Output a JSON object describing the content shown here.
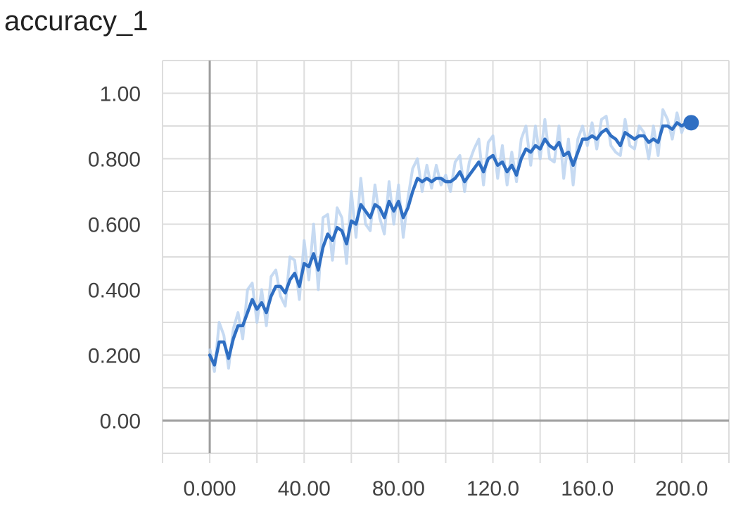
{
  "title": "accuracy_1",
  "chart_data": {
    "type": "line",
    "title": "accuracy_1",
    "xlabel": "",
    "ylabel": "",
    "xlim": [
      -20,
      220
    ],
    "ylim": [
      -0.1,
      1.1
    ],
    "x_ticks": [
      0,
      40,
      80,
      120,
      160,
      200
    ],
    "x_tick_labels": [
      "0.000",
      "40.00",
      "80.00",
      "120.0",
      "160.0",
      "200.0"
    ],
    "y_ticks": [
      0,
      0.2,
      0.4,
      0.6,
      0.8,
      1.0
    ],
    "y_tick_labels": [
      "0.00",
      "0.200",
      "0.400",
      "0.600",
      "0.800",
      "1.00"
    ],
    "grid": true,
    "colors": {
      "smoothed": "#2f6fc3",
      "raw": "#bcd4f0",
      "grid": "#dddddd",
      "axis": "#9e9e9e"
    },
    "series": [
      {
        "role": "smoothed",
        "x": [
          0,
          2,
          4,
          6,
          8,
          10,
          12,
          14,
          16,
          18,
          20,
          22,
          24,
          26,
          28,
          30,
          32,
          34,
          36,
          38,
          40,
          42,
          44,
          46,
          48,
          50,
          52,
          54,
          56,
          58,
          60,
          62,
          64,
          66,
          68,
          70,
          72,
          74,
          76,
          78,
          80,
          82,
          84,
          86,
          88,
          90,
          92,
          94,
          96,
          98,
          100,
          102,
          104,
          106,
          108,
          110,
          112,
          114,
          116,
          118,
          120,
          122,
          124,
          126,
          128,
          130,
          132,
          134,
          136,
          138,
          140,
          142,
          144,
          146,
          148,
          150,
          152,
          154,
          156,
          158,
          160,
          162,
          164,
          166,
          168,
          170,
          172,
          174,
          176,
          178,
          180,
          182,
          184,
          186,
          188,
          190,
          192,
          194,
          196,
          198,
          200,
          202,
          204
        ],
        "y": [
          0.2,
          0.17,
          0.24,
          0.24,
          0.19,
          0.25,
          0.29,
          0.29,
          0.33,
          0.37,
          0.34,
          0.36,
          0.33,
          0.38,
          0.41,
          0.41,
          0.39,
          0.43,
          0.45,
          0.41,
          0.48,
          0.47,
          0.51,
          0.46,
          0.53,
          0.57,
          0.55,
          0.59,
          0.58,
          0.54,
          0.61,
          0.6,
          0.66,
          0.64,
          0.62,
          0.66,
          0.65,
          0.62,
          0.67,
          0.64,
          0.67,
          0.62,
          0.65,
          0.7,
          0.74,
          0.73,
          0.74,
          0.73,
          0.74,
          0.74,
          0.73,
          0.73,
          0.74,
          0.76,
          0.73,
          0.75,
          0.77,
          0.79,
          0.76,
          0.8,
          0.81,
          0.78,
          0.79,
          0.76,
          0.78,
          0.75,
          0.8,
          0.83,
          0.82,
          0.84,
          0.83,
          0.86,
          0.84,
          0.83,
          0.85,
          0.81,
          0.82,
          0.78,
          0.82,
          0.86,
          0.86,
          0.87,
          0.86,
          0.88,
          0.89,
          0.87,
          0.86,
          0.84,
          0.88,
          0.87,
          0.86,
          0.87,
          0.87,
          0.85,
          0.86,
          0.85,
          0.9,
          0.9,
          0.89,
          0.91,
          0.9,
          0.91,
          0.91
        ]
      },
      {
        "role": "raw",
        "x": [
          0,
          2,
          4,
          6,
          8,
          10,
          12,
          14,
          16,
          18,
          20,
          22,
          24,
          26,
          28,
          30,
          32,
          34,
          36,
          38,
          40,
          42,
          44,
          46,
          48,
          50,
          52,
          54,
          56,
          58,
          60,
          62,
          64,
          66,
          68,
          70,
          72,
          74,
          76,
          78,
          80,
          82,
          84,
          86,
          88,
          90,
          92,
          94,
          96,
          98,
          100,
          102,
          104,
          106,
          108,
          110,
          112,
          114,
          116,
          118,
          120,
          122,
          124,
          126,
          128,
          130,
          132,
          134,
          136,
          138,
          140,
          142,
          144,
          146,
          148,
          150,
          152,
          154,
          156,
          158,
          160,
          162,
          164,
          166,
          168,
          170,
          172,
          174,
          176,
          178,
          180,
          182,
          184,
          186,
          188,
          190,
          192,
          194,
          196,
          198,
          200,
          202,
          204
        ],
        "y": [
          0.22,
          0.15,
          0.3,
          0.26,
          0.16,
          0.28,
          0.33,
          0.25,
          0.4,
          0.42,
          0.3,
          0.4,
          0.29,
          0.44,
          0.46,
          0.38,
          0.35,
          0.5,
          0.49,
          0.37,
          0.55,
          0.43,
          0.6,
          0.4,
          0.62,
          0.63,
          0.49,
          0.65,
          0.62,
          0.48,
          0.7,
          0.56,
          0.74,
          0.6,
          0.58,
          0.72,
          0.62,
          0.57,
          0.73,
          0.6,
          0.72,
          0.56,
          0.68,
          0.77,
          0.8,
          0.7,
          0.78,
          0.71,
          0.78,
          0.72,
          0.75,
          0.7,
          0.79,
          0.81,
          0.7,
          0.79,
          0.83,
          0.86,
          0.72,
          0.85,
          0.87,
          0.74,
          0.84,
          0.72,
          0.82,
          0.73,
          0.86,
          0.9,
          0.78,
          0.9,
          0.8,
          0.92,
          0.8,
          0.79,
          0.9,
          0.74,
          0.86,
          0.72,
          0.86,
          0.9,
          0.84,
          0.91,
          0.83,
          0.92,
          0.93,
          0.84,
          0.82,
          0.81,
          0.92,
          0.84,
          0.83,
          0.9,
          0.88,
          0.8,
          0.9,
          0.81,
          0.95,
          0.92,
          0.86,
          0.94,
          0.88,
          0.92,
          0.92
        ]
      }
    ]
  }
}
